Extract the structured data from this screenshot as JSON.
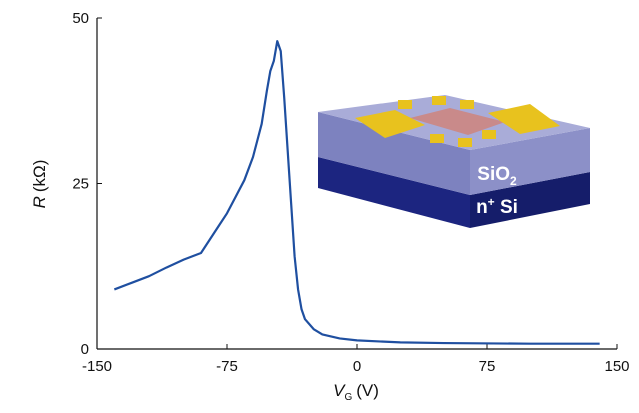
{
  "chart_data": {
    "type": "line",
    "xlabel": [
      "V",
      "G",
      "(V)"
    ],
    "ylabel": [
      "R",
      "(kΩ)"
    ],
    "x": [
      -140,
      -130,
      -120,
      -110,
      -100,
      -90,
      -85,
      -80,
      -75,
      -70,
      -65,
      -60,
      -55,
      -52,
      -50,
      -48,
      -46,
      -44,
      -42,
      -40,
      -38,
      -36,
      -34,
      -32,
      -30,
      -25,
      -20,
      -10,
      0,
      25,
      50,
      100,
      140
    ],
    "series": [
      {
        "color": "#1f4fa0",
        "values": [
          9,
          10,
          11,
          12.3,
          13.5,
          14.5,
          16.5,
          18.5,
          20.5,
          23,
          25.5,
          29,
          34,
          39,
          42,
          43.5,
          46.5,
          45,
          38,
          30,
          22,
          14,
          9,
          6,
          4.5,
          3,
          2.2,
          1.6,
          1.3,
          1.0,
          0.9,
          0.8,
          0.8
        ]
      }
    ],
    "xlim": [
      -150,
      150
    ],
    "xticks": [
      -150,
      -75,
      0,
      75,
      150
    ],
    "ylim": [
      0,
      50
    ],
    "yticks": [
      0,
      25,
      50
    ],
    "inset": {
      "top_layer": [
        "SiO",
        "2"
      ],
      "bottom_layer": [
        "n",
        "+",
        " Si"
      ]
    }
  }
}
